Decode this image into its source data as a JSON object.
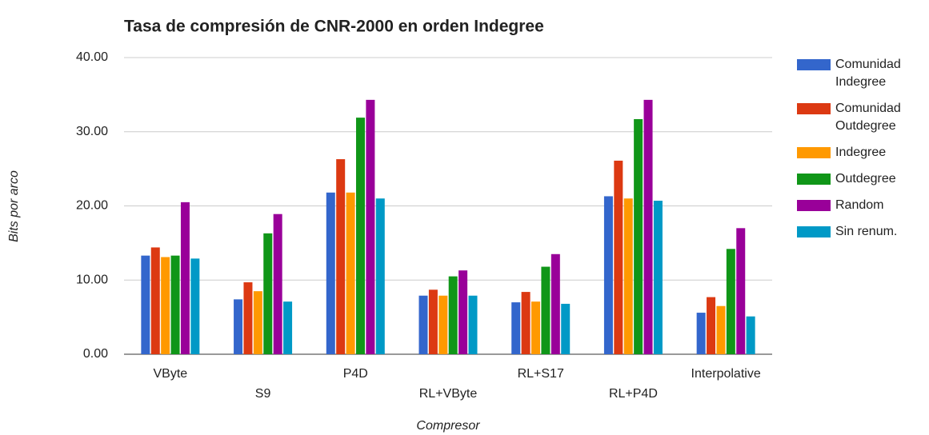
{
  "chart_data": {
    "type": "bar",
    "title": "Tasa de compresión de CNR-2000 en orden Indegree",
    "x_label": "Compresor",
    "y_label": "Bits por arco",
    "categories": [
      "VByte",
      "S9",
      "P4D",
      "RL+VByte",
      "RL+S17",
      "RL+P4D",
      "Interpolative"
    ],
    "series": [
      {
        "name": "Comunidad Indegree",
        "color": "#3366cc",
        "values": [
          13.3,
          7.4,
          21.8,
          7.9,
          7.0,
          21.3,
          5.6
        ]
      },
      {
        "name": "Comunidad Outdegree",
        "color": "#dc3912",
        "values": [
          14.4,
          9.7,
          26.3,
          8.7,
          8.4,
          26.1,
          7.7
        ]
      },
      {
        "name": "Indegree",
        "color": "#ff9900",
        "values": [
          13.1,
          8.5,
          21.8,
          7.9,
          7.1,
          21.0,
          6.5
        ]
      },
      {
        "name": "Outdegree",
        "color": "#109618",
        "values": [
          13.3,
          16.3,
          31.9,
          10.5,
          11.8,
          31.7,
          14.2
        ]
      },
      {
        "name": "Random",
        "color": "#990099",
        "values": [
          20.5,
          18.9,
          34.3,
          11.3,
          13.5,
          34.3,
          17.0
        ]
      },
      {
        "name": "Sin renum.",
        "color": "#0099c6",
        "values": [
          12.9,
          7.1,
          21.0,
          7.9,
          6.8,
          20.7,
          5.1
        ]
      }
    ],
    "ylim": [
      0,
      40
    ],
    "yticks": [
      {
        "value": 0,
        "label": "0.00"
      },
      {
        "value": 10,
        "label": "10.00"
      },
      {
        "value": 20,
        "label": "20.00"
      },
      {
        "value": 30,
        "label": "30.00"
      },
      {
        "value": 40,
        "label": "40.00"
      }
    ],
    "grid": true,
    "legend": "right"
  }
}
